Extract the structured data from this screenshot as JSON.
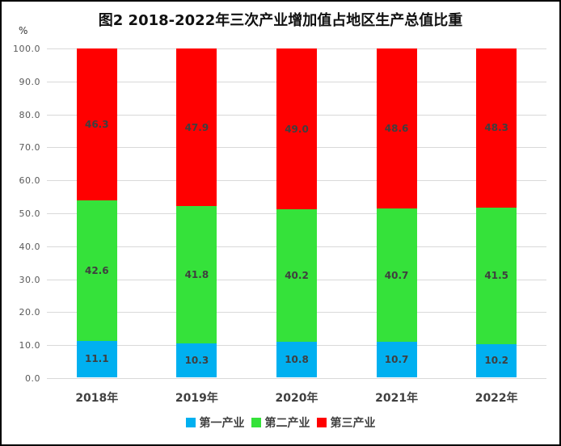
{
  "title": "图2 2018-2022年三次产业增加值占地区生产总值比重",
  "y_axis": {
    "unit": "%",
    "tick_labels": [
      "100.0",
      "90.0",
      "80.0",
      "70.0",
      "60.0",
      "50.0",
      "40.0",
      "30.0",
      "20.0",
      "10.0",
      "0.0"
    ]
  },
  "chart_data": {
    "type": "bar",
    "stacked": true,
    "title": "图2 2018-2022年三次产业增加值占地区生产总值比重",
    "xlabel": "",
    "ylabel": "%",
    "ylim": [
      0,
      100
    ],
    "ytick_step": 10,
    "grid": true,
    "legend_position": "bottom",
    "categories": [
      "2018年",
      "2019年",
      "2020年",
      "2021年",
      "2022年"
    ],
    "series": [
      {
        "name": "第一产业",
        "color": "#00B0F0",
        "values": [
          11.1,
          10.3,
          10.8,
          10.7,
          10.2
        ]
      },
      {
        "name": "第二产业",
        "color": "#35E23A",
        "values": [
          42.6,
          41.8,
          40.2,
          40.7,
          41.5
        ]
      },
      {
        "name": "第三产业",
        "color": "#FF0000",
        "values": [
          46.3,
          47.9,
          49.0,
          48.6,
          48.3
        ]
      }
    ]
  },
  "colors": {
    "grid": "#D9D9D9",
    "axis_label": "#595959",
    "value_label": "#3F3F3F",
    "category_label": "#404040",
    "title": "#111111",
    "frame_border": "#000000",
    "background": "#FFFFFF"
  }
}
